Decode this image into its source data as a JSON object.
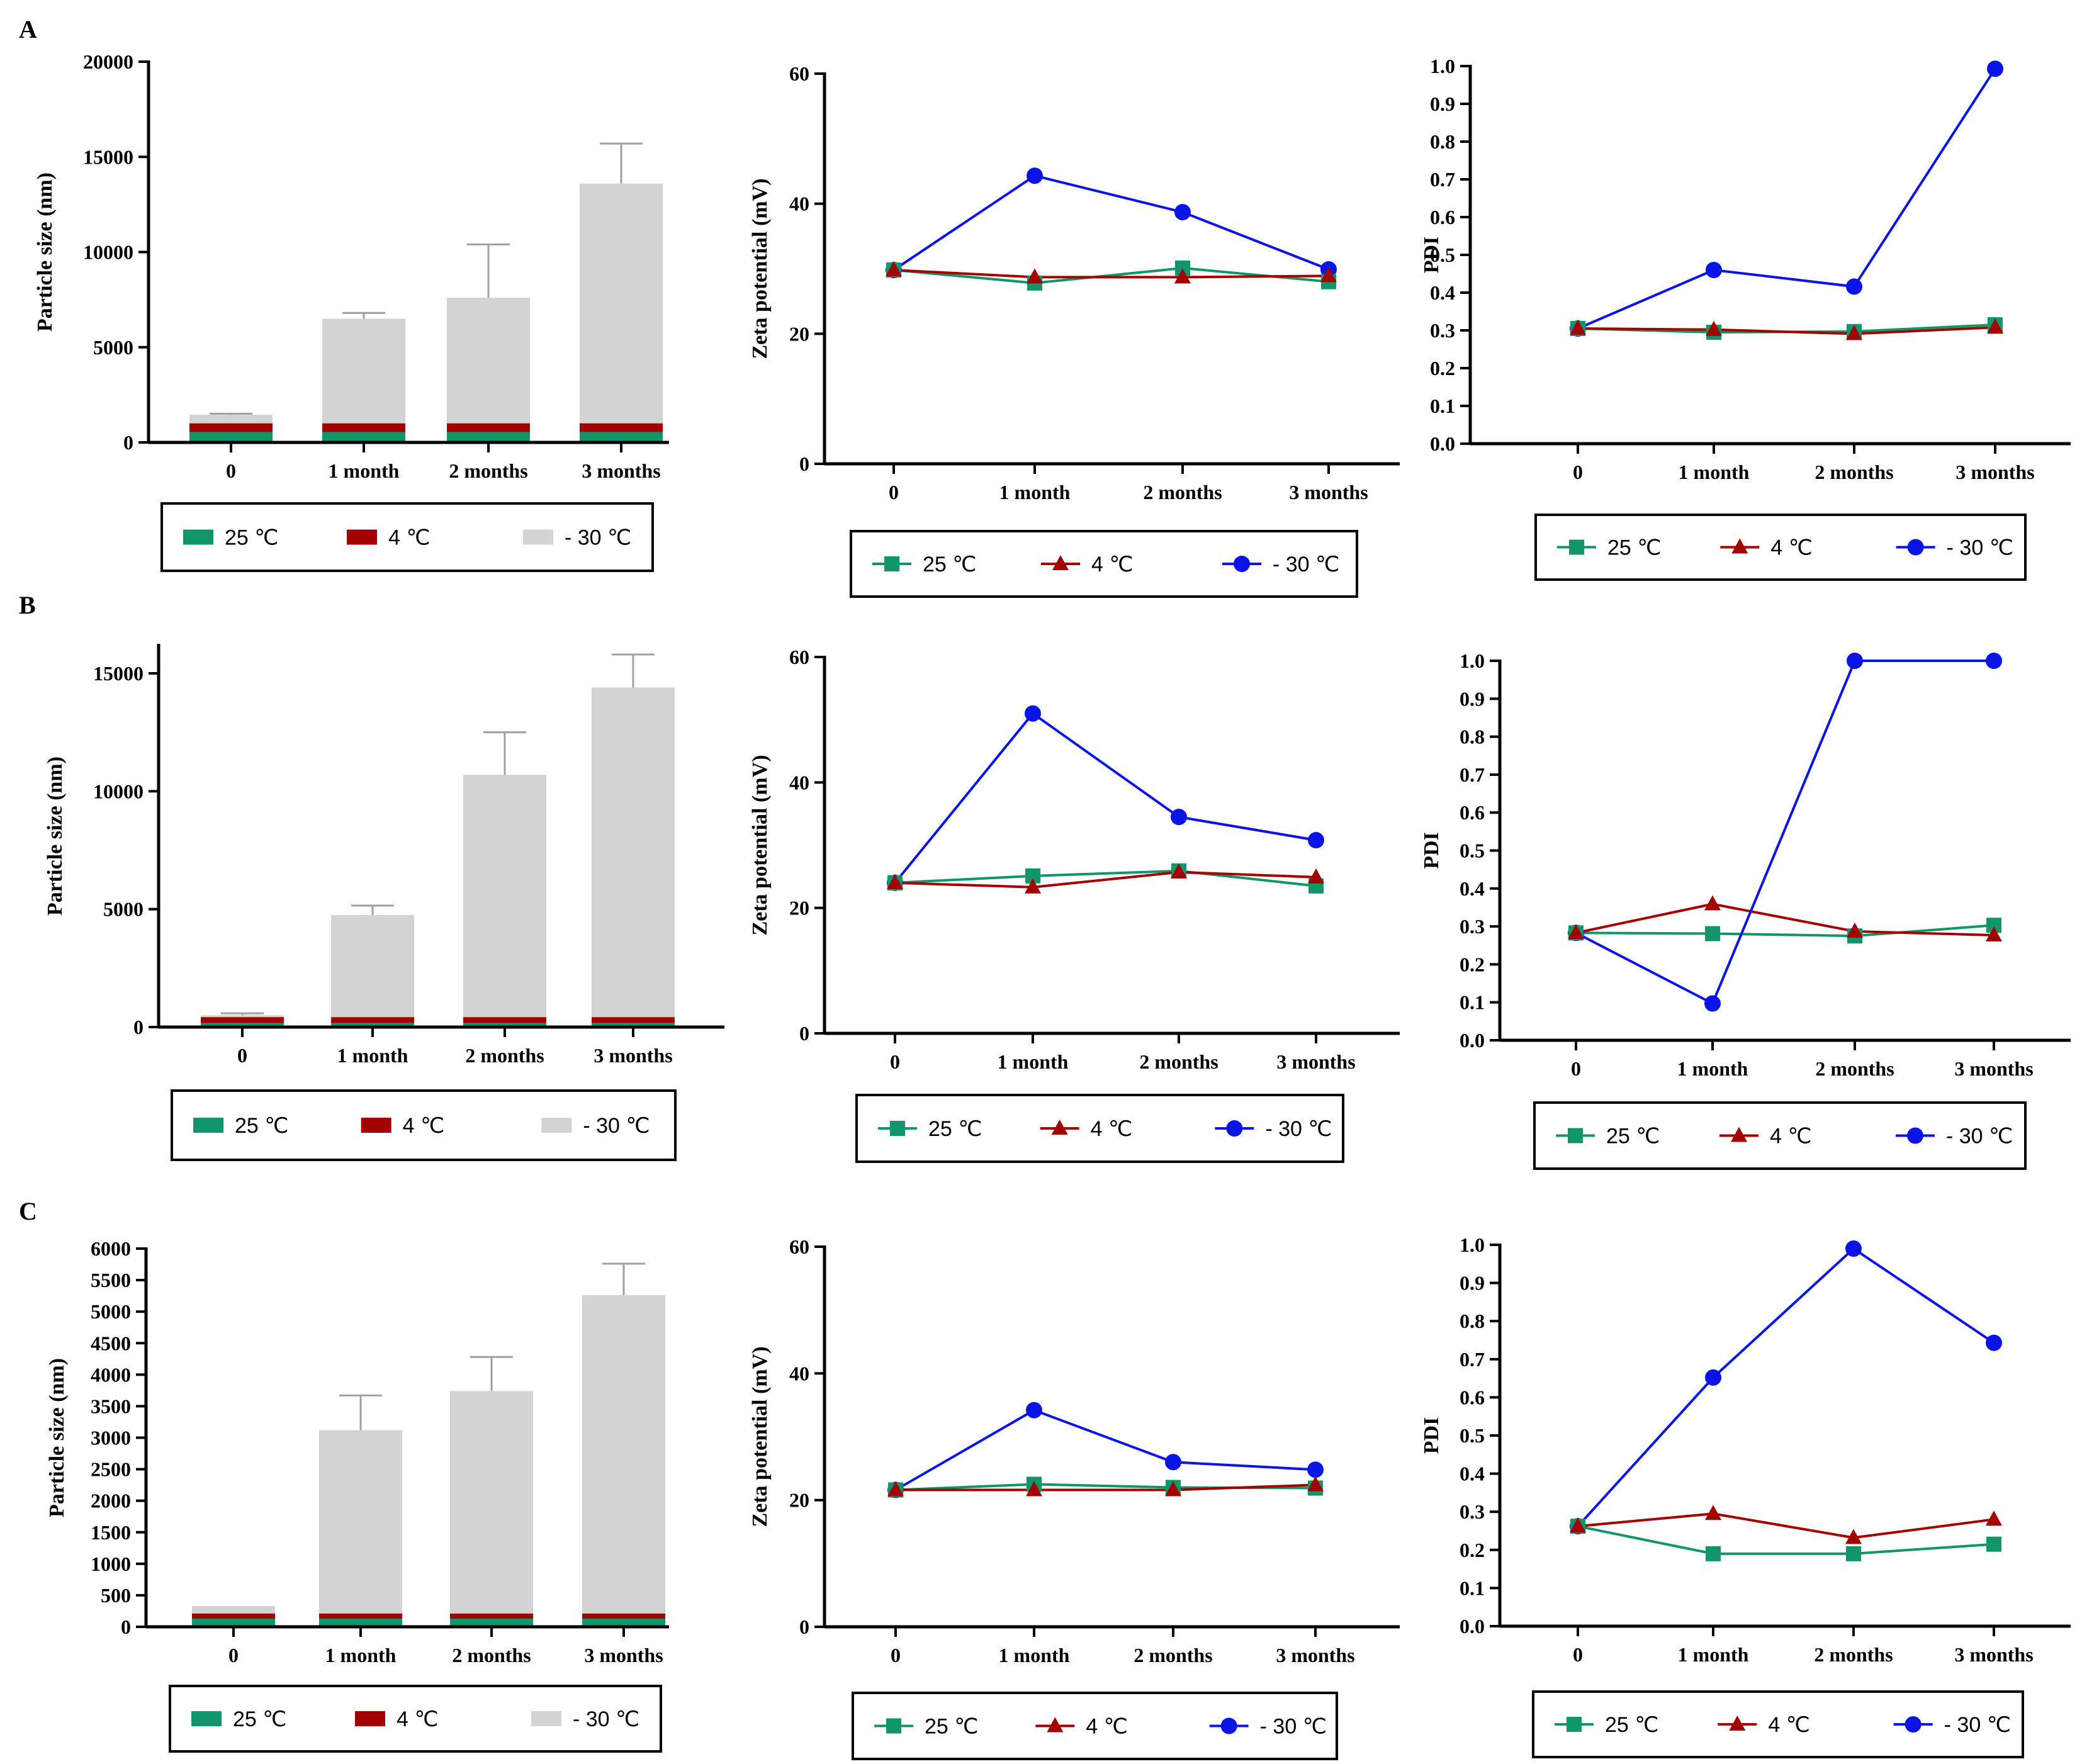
{
  "panel_letters": [
    "A",
    "B",
    "C"
  ],
  "legend_labels": [
    "25 ℃",
    "4 ℃",
    "- 30 ℃"
  ],
  "colors": {
    "c25": "#11956a",
    "c4": "#a30000",
    "cm30_bar": "#d3d3d3",
    "cm30_line": "#0a14e6",
    "err": "#a0a0a0"
  },
  "chart_data": [
    {
      "type": "bar",
      "row": "A",
      "categories": [
        "0",
        "1 month",
        "2 months",
        "3 months"
      ],
      "ylabel": "Particle size (nm)",
      "ylim": [
        0,
        20000
      ],
      "yticks": [
        0,
        5000,
        10000,
        15000,
        20000
      ],
      "stacked": false,
      "series": [
        {
          "name": "- 30 ℃",
          "values": [
            1450,
            6500,
            7600,
            13600
          ],
          "err": [
            60,
            300,
            2800,
            2100
          ]
        },
        {
          "name": "4 ℃",
          "values": [
            1000,
            1000,
            1000,
            1000
          ]
        },
        {
          "name": "25 ℃",
          "values": [
            550,
            550,
            550,
            550
          ]
        }
      ]
    },
    {
      "type": "line",
      "row": "A",
      "categories": [
        "0",
        "1 month",
        "2 months",
        "3 months"
      ],
      "ylabel": "Zeta potential (mV)",
      "ylim": [
        0,
        60
      ],
      "yticks": [
        0,
        20,
        40,
        60
      ],
      "series": [
        {
          "name": "25 ℃",
          "values": [
            29.8,
            27.8,
            30.1,
            28.0
          ]
        },
        {
          "name": "4 ℃",
          "values": [
            29.8,
            28.7,
            28.7,
            28.9
          ]
        },
        {
          "name": "- 30 ℃",
          "values": [
            29.8,
            44.3,
            38.7,
            29.9
          ]
        }
      ]
    },
    {
      "type": "line",
      "row": "A",
      "categories": [
        "0",
        "1 month",
        "2 months",
        "3 months"
      ],
      "ylabel": "PDI",
      "ylim": [
        0,
        1.0
      ],
      "yticks": [
        0.0,
        0.1,
        0.2,
        0.3,
        0.4,
        0.5,
        0.6,
        0.7,
        0.8,
        0.9,
        1.0
      ],
      "series": [
        {
          "name": "25 ℃",
          "values": [
            0.305,
            0.295,
            0.297,
            0.315
          ]
        },
        {
          "name": "4 ℃",
          "values": [
            0.305,
            0.302,
            0.291,
            0.308
          ]
        },
        {
          "name": "- 30 ℃",
          "values": [
            0.305,
            0.46,
            0.416,
            0.993
          ]
        }
      ]
    },
    {
      "type": "bar",
      "row": "B",
      "categories": [
        "0",
        "1 month",
        "2 months",
        "3 months"
      ],
      "ylabel": "Particle size (nm)",
      "ylim": [
        0,
        16200
      ],
      "yticks": [
        0,
        5000,
        10000,
        15000
      ],
      "stacked": false,
      "series": [
        {
          "name": "- 30 ℃",
          "values": [
            500,
            4750,
            10700,
            14400
          ],
          "err": [
            80,
            400,
            1800,
            1400
          ]
        },
        {
          "name": "4 ℃",
          "values": [
            420,
            420,
            420,
            420
          ]
        },
        {
          "name": "25 ℃",
          "values": [
            180,
            180,
            180,
            180
          ]
        }
      ]
    },
    {
      "type": "line",
      "row": "B",
      "categories": [
        "0",
        "1 month",
        "2 months",
        "3 months"
      ],
      "ylabel": "Zeta potential (mV)",
      "ylim": [
        0,
        60
      ],
      "yticks": [
        0,
        20,
        40,
        60
      ],
      "series": [
        {
          "name": "25 ℃",
          "values": [
            24.0,
            25.1,
            25.9,
            23.5
          ]
        },
        {
          "name": "4 ℃",
          "values": [
            24.0,
            23.3,
            25.7,
            24.9
          ]
        },
        {
          "name": "- 30 ℃",
          "values": [
            24.0,
            51.0,
            34.5,
            30.8
          ]
        }
      ]
    },
    {
      "type": "line",
      "row": "B",
      "categories": [
        "0",
        "1 month",
        "2 months",
        "3 months"
      ],
      "ylabel": "PDI",
      "ylim": [
        0,
        1.0
      ],
      "yticks": [
        0.0,
        0.1,
        0.2,
        0.3,
        0.4,
        0.5,
        0.6,
        0.7,
        0.8,
        0.9,
        1.0
      ],
      "series": [
        {
          "name": "25 ℃",
          "values": [
            0.283,
            0.281,
            0.275,
            0.303
          ]
        },
        {
          "name": "4 ℃",
          "values": [
            0.283,
            0.359,
            0.287,
            0.277
          ]
        },
        {
          "name": "- 30 ℃",
          "values": [
            0.283,
            0.097,
            1.0,
            1.0
          ]
        }
      ]
    },
    {
      "type": "bar",
      "row": "C",
      "categories": [
        "0",
        "1 month",
        "2 months",
        "3 months"
      ],
      "ylabel": "Particle size (nm)",
      "ylim": [
        0,
        6000
      ],
      "yticks": [
        0,
        500,
        1000,
        1500,
        2000,
        2500,
        3000,
        3500,
        4000,
        4500,
        5000,
        5500,
        6000
      ],
      "stacked": false,
      "series": [
        {
          "name": "- 30 ℃",
          "values": [
            330,
            3120,
            3740,
            5260
          ],
          "err": [
            0,
            550,
            540,
            500
          ]
        },
        {
          "name": "4 ℃",
          "values": [
            210,
            210,
            210,
            210
          ]
        },
        {
          "name": "25 ℃",
          "values": [
            130,
            130,
            130,
            130
          ]
        }
      ]
    },
    {
      "type": "line",
      "row": "C",
      "categories": [
        "0",
        "1 month",
        "2 months",
        "3 months"
      ],
      "ylabel": "Zeta potential (mV)",
      "ylim": [
        0,
        60
      ],
      "yticks": [
        0,
        20,
        40,
        60
      ],
      "series": [
        {
          "name": "25 ℃",
          "values": [
            21.6,
            22.5,
            22.0,
            21.9
          ]
        },
        {
          "name": "4 ℃",
          "values": [
            21.6,
            21.6,
            21.6,
            22.4
          ]
        },
        {
          "name": "- 30 ℃",
          "values": [
            21.6,
            34.2,
            26.0,
            24.8
          ]
        }
      ]
    },
    {
      "type": "line",
      "row": "C",
      "categories": [
        "0",
        "1 month",
        "2 months",
        "3 months"
      ],
      "ylabel": "PDI",
      "ylim": [
        0,
        1.0
      ],
      "yticks": [
        0.0,
        0.1,
        0.2,
        0.3,
        0.4,
        0.5,
        0.6,
        0.7,
        0.8,
        0.9,
        1.0
      ],
      "series": [
        {
          "name": "25 ℃",
          "values": [
            0.262,
            0.19,
            0.19,
            0.215
          ]
        },
        {
          "name": "4 ℃",
          "values": [
            0.262,
            0.295,
            0.232,
            0.28
          ]
        },
        {
          "name": "- 30 ℃",
          "values": [
            0.262,
            0.652,
            0.99,
            0.743
          ]
        }
      ]
    }
  ]
}
